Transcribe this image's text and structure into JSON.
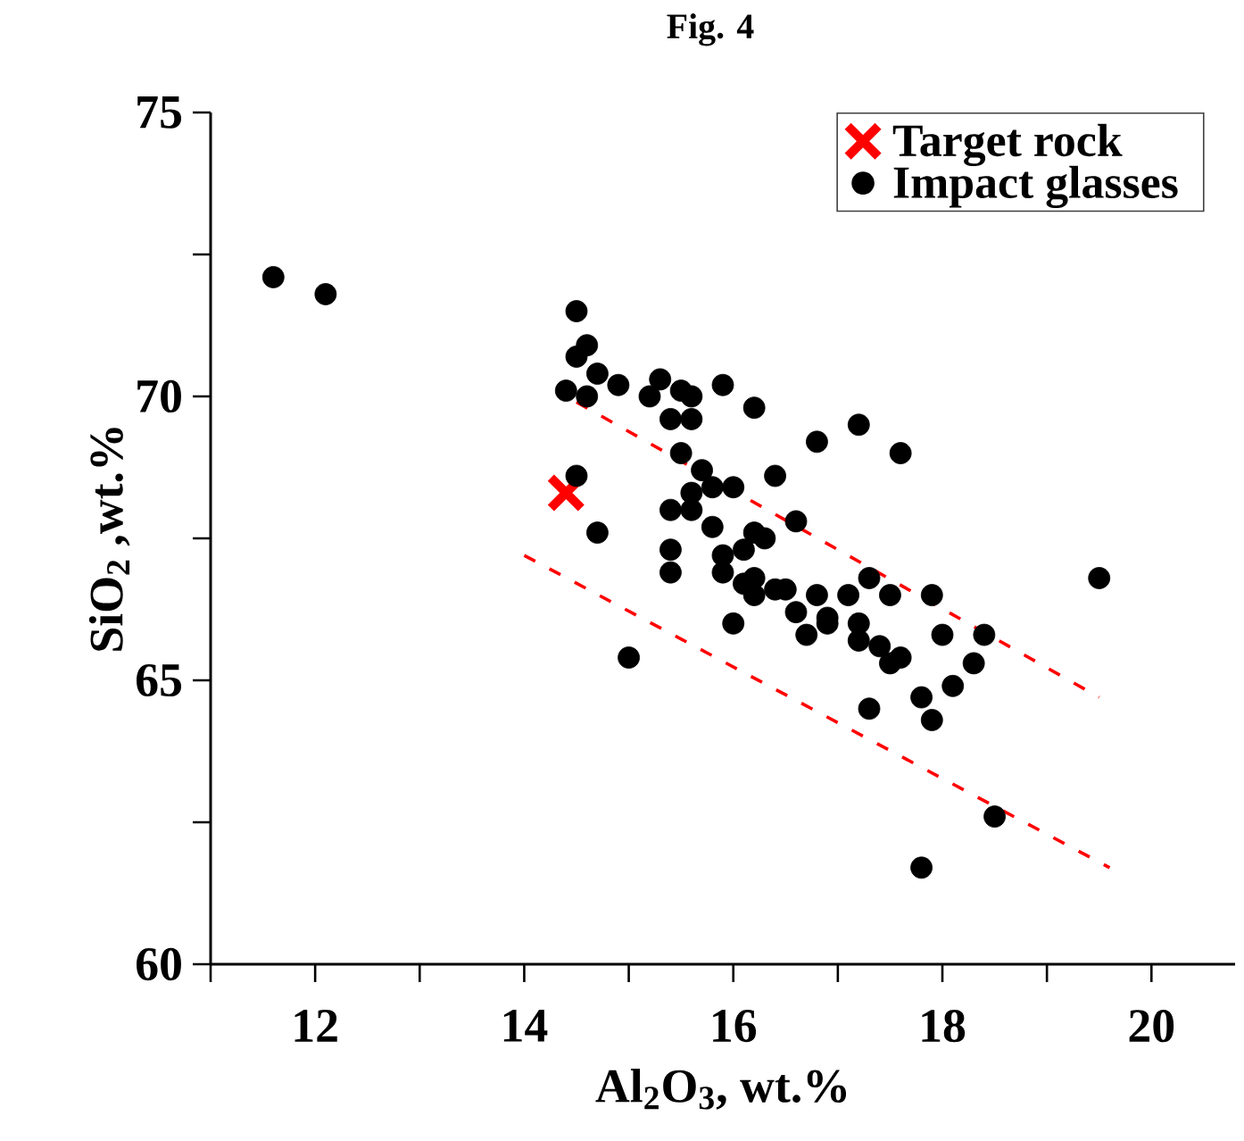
{
  "chart_data": {
    "type": "scatter",
    "title": "Fig. 4",
    "xlabel": "Al$_{2}$O$_{3}$, wt.%",
    "ylabel": "SiO$_{2}$ ,wt.%",
    "xlim": [
      11,
      20.8
    ],
    "ylim": [
      60,
      75
    ],
    "xticks": [
      {
        "value": 11,
        "label": null
      },
      12,
      {
        "value": 13,
        "label": null
      },
      14,
      {
        "value": 15,
        "label": null
      },
      16,
      {
        "value": 17,
        "label": null
      },
      18,
      {
        "value": 19,
        "label": null
      },
      20
    ],
    "yticks": [
      60,
      {
        "value": 62.5,
        "label": null
      },
      65,
      {
        "value": 67.5,
        "label": null
      },
      70,
      {
        "value": 72.5,
        "label": null
      },
      75
    ],
    "grid": false,
    "legend": "top right",
    "series": [
      {
        "name": "Target rock",
        "marker": "cross",
        "color": "#ff0000",
        "x": [
          14.4
        ],
        "values": [
          68.3
        ]
      },
      {
        "name": "Impact glasses",
        "marker": "circle",
        "color": "#000000",
        "x": [
          11.6,
          12.1,
          14.5,
          14.6,
          14.5,
          14.7,
          14.4,
          14.6,
          14.9,
          15.2,
          15.3,
          15.5,
          15.6,
          15.9,
          15.4,
          15.6,
          16.2,
          16.8,
          17.2,
          17.6,
          14.5,
          14.7,
          15.5,
          15.7,
          15.8,
          16.0,
          15.6,
          15.4,
          15.6,
          15.8,
          16.4,
          16.6,
          16.2,
          16.3,
          16.1,
          15.9,
          15.4,
          15.4,
          15.9,
          16.1,
          16.2,
          16.4,
          16.5,
          16.8,
          17.1,
          17.3,
          17.5,
          17.9,
          16.0,
          16.6,
          16.9,
          17.2,
          16.2,
          16.7,
          16.9,
          17.2,
          17.4,
          17.5,
          17.6,
          18.0,
          18.4,
          18.3,
          18.1,
          17.8,
          17.9,
          17.3,
          18.5,
          17.8,
          19.5,
          15.0
        ],
        "values": [
          72.1,
          71.8,
          71.5,
          70.9,
          70.7,
          70.4,
          70.1,
          70.0,
          70.2,
          70.0,
          70.3,
          70.1,
          70.0,
          70.2,
          69.6,
          69.6,
          69.8,
          69.2,
          69.5,
          69.0,
          68.6,
          67.6,
          69.0,
          68.7,
          68.4,
          68.4,
          68.3,
          68.0,
          68.0,
          67.7,
          68.6,
          67.8,
          67.6,
          67.5,
          67.3,
          67.2,
          67.3,
          66.9,
          66.9,
          66.7,
          66.8,
          66.6,
          66.6,
          66.5,
          66.5,
          66.8,
          66.5,
          66.5,
          66.0,
          66.2,
          66.1,
          66.0,
          66.5,
          65.8,
          66.0,
          65.7,
          65.6,
          65.3,
          65.4,
          65.8,
          65.8,
          65.3,
          64.9,
          64.7,
          64.3,
          64.5,
          62.6,
          61.7,
          66.8,
          65.4
        ]
      },
      {
        "type": "line",
        "line_style": "dashed",
        "color": "#ff0000",
        "x": [
          14.5,
          19.5
        ],
        "values": [
          69.9,
          64.7
        ]
      },
      {
        "type": "line",
        "line_style": "dashed",
        "color": "#ff0000",
        "x": [
          14.0,
          19.6
        ],
        "values": [
          67.2,
          61.7
        ]
      }
    ]
  }
}
